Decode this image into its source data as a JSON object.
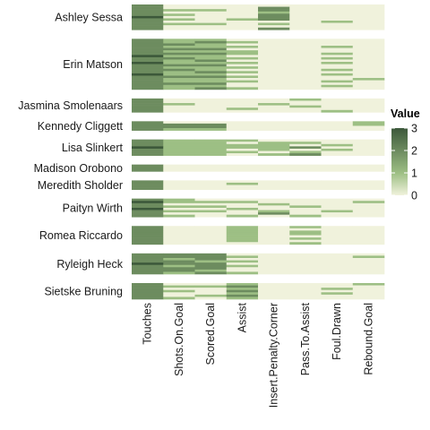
{
  "chart_data": {
    "type": "heatmap",
    "title": "",
    "xlabel": "",
    "ylabel": "",
    "x_categories": [
      "Touches",
      "Shots.On.Goal",
      "Scored.Goal",
      "Assist",
      "Insert.Penalty.Corner",
      "Pass.To.Assist",
      "Foul.Drawn",
      "Rebound.Goal"
    ],
    "y_categories": [
      "Ashley Sessa",
      "Erin Matson",
      "Jasmina Smolenaars",
      "Kennedy Cliggett",
      "Lisa Slinkert",
      "Madison Orobono",
      "Meredith Sholder",
      "Paityn Wirth",
      "Romea Riccardo",
      "Ryleigh Heck",
      "Sietske Bruning"
    ],
    "legend": {
      "title": "Value",
      "ticks": [
        0,
        1,
        2,
        3
      ],
      "range": [
        0,
        3
      ],
      "position": "right",
      "colors": [
        "#f0f2dc",
        "#9dbf84",
        "#3c583a"
      ]
    },
    "groups": [
      {
        "player": "Ashley Sessa",
        "rows": [
          [
            2,
            0,
            0,
            0,
            0,
            0,
            0,
            0
          ],
          [
            2,
            0,
            0,
            0,
            2,
            0,
            0,
            0
          ],
          [
            2,
            1,
            1,
            0,
            2,
            0,
            0,
            0
          ],
          [
            2,
            0,
            0,
            0,
            1,
            0,
            0,
            0
          ],
          [
            2,
            1,
            0,
            0,
            2,
            0,
            0,
            0
          ],
          [
            3,
            0,
            0,
            0,
            2,
            0,
            0,
            0
          ],
          [
            2,
            1,
            0,
            1,
            2,
            0,
            0,
            0
          ],
          [
            2,
            0,
            0,
            0,
            0,
            0,
            1,
            0
          ],
          [
            2,
            1,
            1,
            0,
            1,
            0,
            0,
            0
          ],
          [
            2,
            0,
            0,
            0,
            0,
            0,
            0,
            0
          ],
          [
            2,
            0,
            0,
            0,
            2,
            0,
            0,
            0
          ]
        ]
      },
      {
        "player": "Erin Matson",
        "rows": [
          [
            2,
            1,
            1,
            0,
            0,
            0,
            0,
            0
          ],
          [
            2,
            1,
            2,
            1,
            0,
            0,
            0,
            0
          ],
          [
            2,
            2,
            1,
            0,
            0,
            0,
            0,
            0
          ],
          [
            2,
            1,
            1,
            1,
            0,
            0,
            1,
            0
          ],
          [
            2,
            2,
            2,
            0,
            0,
            0,
            0,
            0
          ],
          [
            2,
            1,
            1,
            1,
            0,
            0,
            0,
            0
          ],
          [
            2,
            2,
            2,
            1,
            0,
            0,
            1,
            0
          ],
          [
            3,
            1,
            1,
            0,
            0,
            0,
            0,
            0
          ],
          [
            2,
            2,
            1,
            1,
            0,
            0,
            1,
            0
          ],
          [
            2,
            1,
            2,
            0,
            0,
            0,
            0,
            0
          ],
          [
            3,
            1,
            1,
            1,
            0,
            0,
            1,
            0
          ],
          [
            2,
            2,
            2,
            0,
            0,
            0,
            0,
            0
          ],
          [
            2,
            1,
            1,
            1,
            0,
            0,
            0,
            0
          ],
          [
            2,
            2,
            1,
            0,
            0,
            0,
            1,
            0
          ],
          [
            2,
            1,
            2,
            1,
            0,
            0,
            0,
            0
          ],
          [
            3,
            1,
            1,
            0,
            0,
            0,
            1,
            0
          ],
          [
            2,
            2,
            2,
            1,
            0,
            0,
            0,
            0
          ],
          [
            2,
            1,
            1,
            0,
            0,
            0,
            0,
            1
          ],
          [
            2,
            1,
            1,
            1,
            0,
            0,
            1,
            0
          ],
          [
            2,
            2,
            2,
            0,
            0,
            0,
            0,
            0
          ],
          [
            2,
            1,
            1,
            0,
            0,
            0,
            1,
            0
          ],
          [
            2,
            1,
            2,
            1,
            0,
            0,
            0,
            0
          ]
        ]
      },
      {
        "player": "Jasmina Smolenaars",
        "rows": [
          [
            2,
            0,
            0,
            0,
            0,
            1,
            0,
            0
          ],
          [
            2,
            0,
            0,
            0,
            0,
            0,
            0,
            0
          ],
          [
            2,
            1,
            0,
            0,
            1,
            0,
            0,
            0
          ],
          [
            2,
            0,
            0,
            0,
            0,
            1,
            0,
            0
          ],
          [
            2,
            0,
            0,
            1,
            0,
            0,
            0,
            0
          ],
          [
            2,
            0,
            0,
            0,
            0,
            0,
            1,
            0
          ]
        ]
      },
      {
        "player": "Kennedy Cliggett",
        "rows": [
          [
            2,
            0,
            0,
            0,
            0,
            0,
            0,
            1
          ],
          [
            2,
            2,
            2,
            0,
            0,
            0,
            0,
            1
          ],
          [
            2,
            2,
            2,
            0,
            0,
            0,
            0,
            0
          ],
          [
            2,
            1,
            1,
            0,
            0,
            0,
            0,
            0
          ]
        ]
      },
      {
        "player": "Lisa Slinkert",
        "rows": [
          [
            2,
            1,
            1,
            1,
            0,
            0,
            0,
            0
          ],
          [
            2,
            1,
            1,
            0,
            1,
            1,
            0,
            0
          ],
          [
            2,
            1,
            1,
            1,
            1,
            0,
            1,
            0
          ],
          [
            3,
            1,
            1,
            1,
            1,
            2,
            0,
            0
          ],
          [
            2,
            1,
            1,
            0,
            1,
            0,
            1,
            0
          ],
          [
            2,
            1,
            1,
            1,
            0,
            1,
            0,
            0
          ],
          [
            2,
            1,
            1,
            0,
            1,
            2,
            0,
            0
          ]
        ]
      },
      {
        "player": "Madison Orobono",
        "rows": [
          [
            2,
            0,
            0,
            0,
            0,
            0,
            0,
            0
          ],
          [
            2,
            0,
            0,
            0,
            0,
            0,
            0,
            0
          ],
          [
            2,
            0,
            0,
            0,
            0,
            0,
            0,
            0
          ]
        ]
      },
      {
        "player": "Meredith Sholder",
        "rows": [
          [
            2,
            0,
            0,
            0,
            0,
            0,
            0,
            0
          ],
          [
            2,
            0,
            0,
            1,
            0,
            0,
            0,
            0
          ],
          [
            2,
            0,
            0,
            0,
            0,
            0,
            0,
            0
          ],
          [
            2,
            0,
            0,
            0,
            0,
            0,
            0,
            0
          ]
        ]
      },
      {
        "player": "Paityn Wirth",
        "rows": [
          [
            2,
            1,
            0,
            0,
            0,
            0,
            0,
            0
          ],
          [
            3,
            1,
            1,
            1,
            0,
            0,
            0,
            1
          ],
          [
            2,
            0,
            0,
            0,
            1,
            0,
            0,
            0
          ],
          [
            2,
            1,
            1,
            0,
            0,
            1,
            0,
            0
          ],
          [
            3,
            0,
            0,
            1,
            0,
            0,
            0,
            0
          ],
          [
            2,
            1,
            1,
            0,
            1,
            0,
            1,
            0
          ],
          [
            2,
            0,
            0,
            0,
            2,
            0,
            0,
            0
          ],
          [
            2,
            1,
            0,
            1,
            0,
            1,
            0,
            0
          ]
        ]
      },
      {
        "player": "Romea Riccardo",
        "rows": [
          [
            2,
            0,
            0,
            1,
            0,
            1,
            0,
            0
          ],
          [
            2,
            0,
            0,
            1,
            0,
            0,
            0,
            0
          ],
          [
            2,
            0,
            0,
            1,
            0,
            1,
            0,
            0
          ],
          [
            2,
            0,
            0,
            1,
            0,
            1,
            0,
            0
          ],
          [
            2,
            0,
            0,
            1,
            0,
            0,
            0,
            0
          ],
          [
            2,
            0,
            0,
            1,
            0,
            1,
            0,
            0
          ],
          [
            2,
            0,
            0,
            1,
            0,
            0,
            0,
            0
          ],
          [
            2,
            0,
            0,
            0,
            0,
            1,
            0,
            0
          ]
        ]
      },
      {
        "player": "Ryleigh Heck",
        "rows": [
          [
            2,
            2,
            2,
            0,
            0,
            0,
            0,
            0
          ],
          [
            2,
            2,
            2,
            1,
            0,
            0,
            0,
            1
          ],
          [
            2,
            1,
            2,
            0,
            0,
            0,
            0,
            0
          ],
          [
            2,
            2,
            1,
            1,
            0,
            0,
            0,
            0
          ],
          [
            3,
            2,
            2,
            0,
            0,
            0,
            0,
            0
          ],
          [
            2,
            1,
            2,
            1,
            0,
            0,
            0,
            0
          ],
          [
            2,
            2,
            2,
            0,
            0,
            0,
            0,
            0
          ],
          [
            2,
            2,
            1,
            0,
            0,
            0,
            0,
            0
          ],
          [
            2,
            1,
            2,
            1,
            0,
            0,
            0,
            0
          ]
        ]
      },
      {
        "player": "Sietske Bruning",
        "rows": [
          [
            2,
            0,
            0,
            1,
            0,
            0,
            0,
            1
          ],
          [
            2,
            1,
            1,
            2,
            0,
            0,
            0,
            0
          ],
          [
            2,
            0,
            0,
            1,
            0,
            0,
            1,
            0
          ],
          [
            2,
            1,
            0,
            2,
            0,
            0,
            0,
            0
          ],
          [
            2,
            0,
            0,
            1,
            0,
            0,
            1,
            0
          ],
          [
            2,
            0,
            1,
            2,
            0,
            0,
            0,
            0
          ],
          [
            2,
            1,
            0,
            1,
            0,
            0,
            0,
            0
          ]
        ]
      }
    ]
  }
}
